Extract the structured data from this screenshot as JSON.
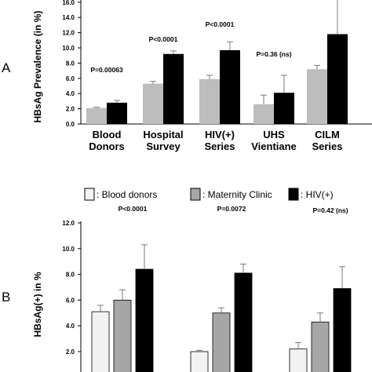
{
  "chart_data": [
    {
      "panel": "A",
      "type": "bar",
      "ylabel": "HBsAg Prevalence (in %)",
      "ylim": [
        0,
        16
      ],
      "yticks": [
        "0.0",
        "2.0",
        "4.0",
        "6.0",
        "8.0",
        "10.0",
        "12.0",
        "14.0",
        "16.0"
      ],
      "categories": [
        {
          "line1": "Blood",
          "line2": "Donors"
        },
        {
          "line1": "Hospital",
          "line2": "Survey"
        },
        {
          "line1": "HIV(+)",
          "line2": "Series"
        },
        {
          "line1": "UHS",
          "line2": "Vientiane"
        },
        {
          "line1": "CILM",
          "line2": "Series"
        }
      ],
      "series": [
        {
          "color": "#bdbdbd",
          "values": [
            2.1,
            5.3,
            5.9,
            2.6,
            7.2
          ],
          "errors": [
            0.1,
            0.3,
            0.5,
            1.2,
            0.5
          ]
        },
        {
          "color": "#000000",
          "values": [
            2.8,
            9.2,
            9.7,
            4.1,
            11.8
          ],
          "errors": [
            0.3,
            0.4,
            1.1,
            2.3,
            4.6
          ]
        }
      ],
      "pvalues": [
        "P=0.00063",
        "P<0.0001",
        "P<0.0001",
        "P=0.36 (ns)",
        ""
      ]
    },
    {
      "panel": "B",
      "type": "bar",
      "ylabel": "HBsAg(+) in %",
      "ylim": [
        0,
        12
      ],
      "yticks": [
        "2.0",
        "4.0",
        "6.0",
        "8.0",
        "10.0",
        "12.0"
      ],
      "legend": [
        {
          "label": ": Blood donors",
          "color": "#f2f2f2"
        },
        {
          "label": ": Maternity Clinic",
          "color": "#a6a6a6"
        },
        {
          "label": ": HIV(+)",
          "color": "#000000"
        }
      ],
      "groups": [
        {
          "values": [
            5.1,
            6.0,
            8.4
          ],
          "errors": [
            0.5,
            0.8,
            1.9
          ],
          "pvalue": "P<0.0001"
        },
        {
          "values": [
            2.0,
            5.0,
            8.1
          ],
          "errors": [
            0.1,
            0.4,
            0.7
          ],
          "pvalue": "P=0.0072"
        },
        {
          "values": [
            2.2,
            4.3,
            6.9
          ],
          "errors": [
            0.5,
            0.7,
            1.7
          ],
          "pvalue": "P=0.42 (ns)"
        }
      ],
      "colors": [
        "#f2f2f2",
        "#a6a6a6",
        "#000000"
      ]
    }
  ]
}
